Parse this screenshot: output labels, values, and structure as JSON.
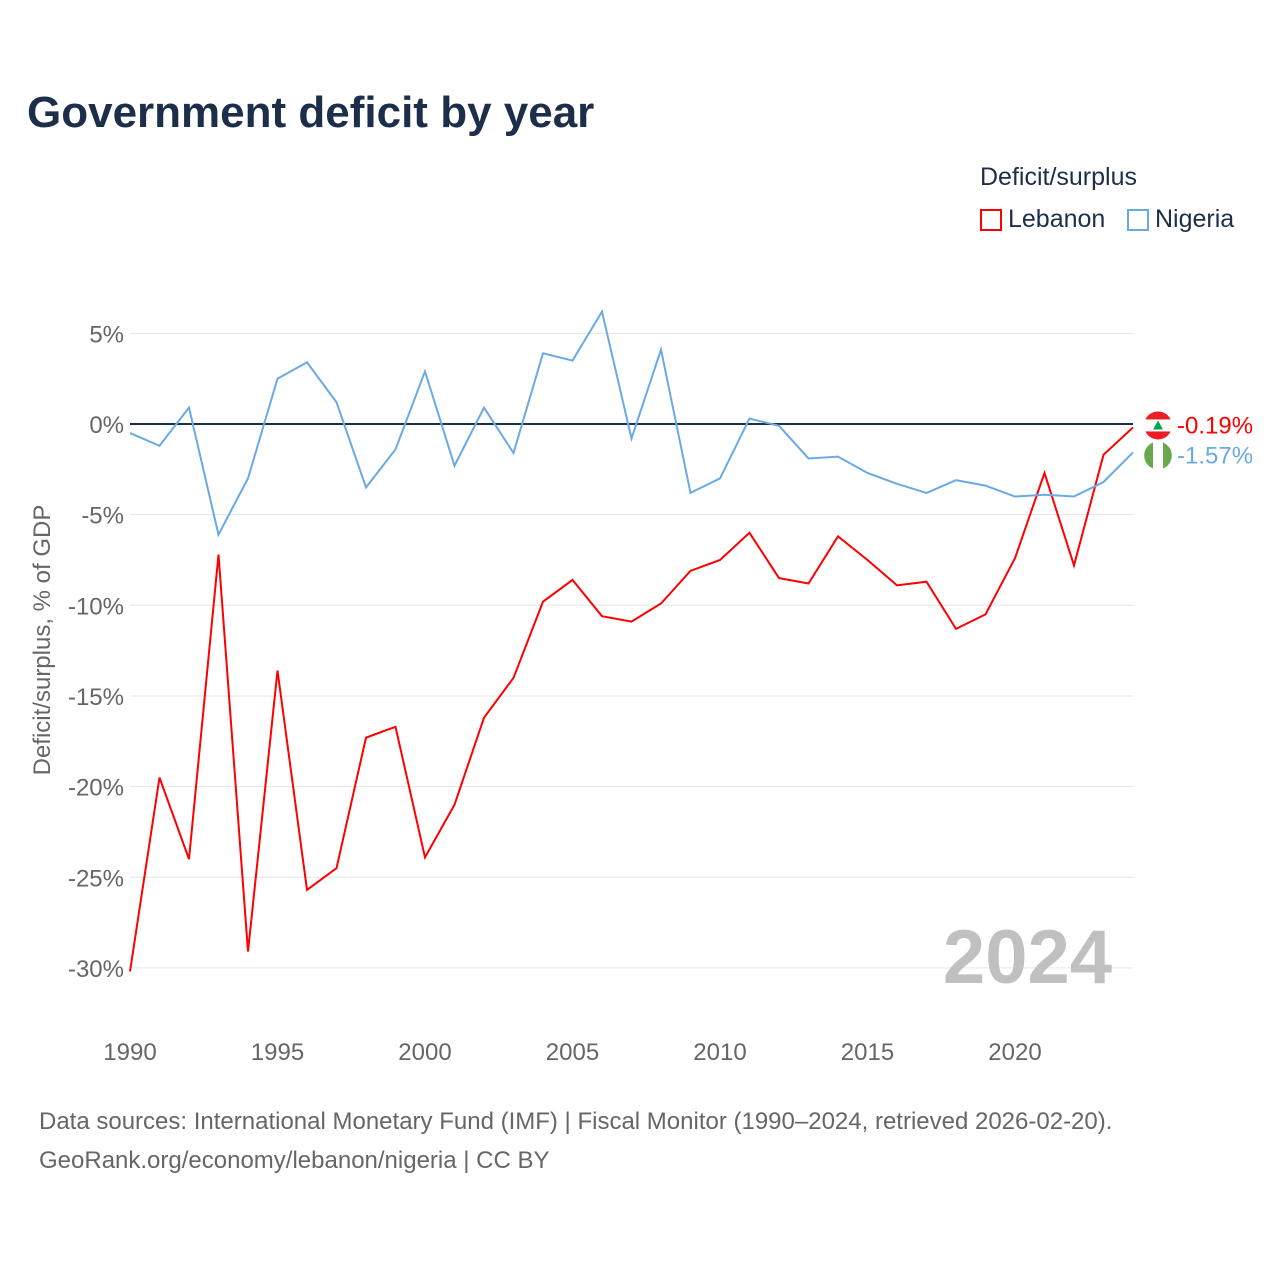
{
  "chart_data": {
    "type": "line",
    "title": "Government deficit by year",
    "ylabel": "Deficit/surplus, % of GDP",
    "xlabel": "",
    "legend_title": "Deficit/surplus",
    "legend_placement": "top-right",
    "xlim": [
      1990,
      2024
    ],
    "ylim": [
      -32,
      7
    ],
    "x_ticks": [
      1990,
      1995,
      2000,
      2005,
      2010,
      2015,
      2020
    ],
    "y_ticks": [
      5,
      0,
      -5,
      -10,
      -15,
      -20,
      -25,
      -30
    ],
    "y_tick_labels": [
      "5%",
      "0%",
      "-5%",
      "-10%",
      "-15%",
      "-20%",
      "-25%",
      "-30%"
    ],
    "year_watermark": "2024",
    "x": [
      1990,
      1991,
      1992,
      1993,
      1994,
      1995,
      1996,
      1997,
      1998,
      1999,
      2000,
      2001,
      2002,
      2003,
      2004,
      2005,
      2006,
      2007,
      2008,
      2009,
      2010,
      2011,
      2012,
      2013,
      2014,
      2015,
      2016,
      2017,
      2018,
      2019,
      2020,
      2021,
      2022,
      2023,
      2024
    ],
    "series": [
      {
        "name": "Lebanon",
        "color": "#ff0000",
        "end_label": "-0.19%",
        "values": [
          -30.2,
          -19.5,
          -24.0,
          -7.2,
          -29.1,
          -13.6,
          -25.7,
          -24.5,
          -17.3,
          -16.7,
          -23.9,
          -21.0,
          -16.2,
          -14.0,
          -9.8,
          -8.6,
          -10.6,
          -10.9,
          -9.9,
          -8.1,
          -7.5,
          -6.0,
          -8.5,
          -8.8,
          -6.2,
          -7.5,
          -8.9,
          -8.7,
          -11.3,
          -10.5,
          -7.4,
          -2.7,
          -7.8,
          -1.7,
          -0.19
        ]
      },
      {
        "name": "Nigeria",
        "color": "#6aaae4",
        "end_label": "-1.57%",
        "values": [
          -0.5,
          -1.2,
          0.9,
          -6.1,
          -3.0,
          2.5,
          3.4,
          1.2,
          -3.5,
          -1.4,
          2.9,
          -2.3,
          0.9,
          -1.6,
          3.9,
          3.5,
          6.2,
          -0.8,
          4.1,
          -3.8,
          -3.0,
          0.3,
          -0.1,
          -1.9,
          -1.8,
          -2.7,
          -3.3,
          -3.8,
          -3.1,
          -3.4,
          -4.0,
          -3.9,
          -4.0,
          -3.2,
          -1.57
        ]
      }
    ]
  },
  "footer": {
    "line1": "Data sources: International Monetary Fund (IMF) | Fiscal Monitor (1990–2024, retrieved 2026-02-20).",
    "line2": "GeoRank.org/economy/lebanon/nigeria | CC BY"
  }
}
